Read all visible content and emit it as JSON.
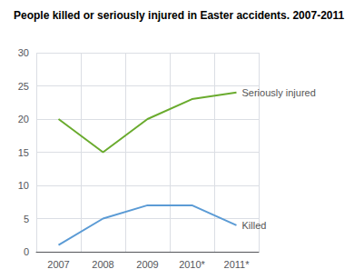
{
  "chart_data": {
    "type": "line",
    "title": "People killed or seriously injured in Easter accidents. 2007-2011",
    "categories": [
      "2007",
      "2008",
      "2009",
      "2010*",
      "2011*"
    ],
    "series": [
      {
        "name": "Seriously injured",
        "color": "#6aab2e",
        "values": [
          20,
          15,
          20,
          23,
          24
        ]
      },
      {
        "name": "Killed",
        "color": "#5b9bd5",
        "values": [
          1,
          5,
          7,
          7,
          4
        ]
      }
    ],
    "ylim": [
      0,
      30
    ],
    "yticks": [
      0,
      5,
      10,
      15,
      20,
      25,
      30
    ],
    "grid": true
  }
}
